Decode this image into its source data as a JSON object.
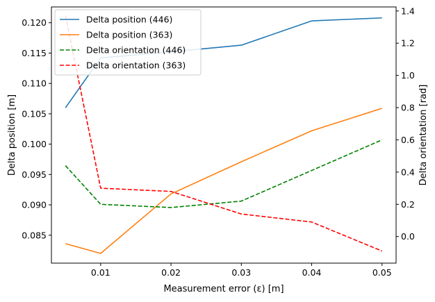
{
  "chart_data": {
    "type": "line",
    "title": "",
    "xlabel": "Measurement error (ε) [m]",
    "ylabel": "Delta position [m]",
    "ylabel_right": "Delta orientation [rad]",
    "x": [
      0.005,
      0.01,
      0.02,
      0.03,
      0.04,
      0.05
    ],
    "xlim": [
      0.003,
      0.052
    ],
    "ylim": [
      0.0804,
      0.1226
    ],
    "ylim_right": [
      -0.165,
      1.425
    ],
    "x_ticks": [
      "0.01",
      "0.02",
      "0.03",
      "0.04",
      "0.05"
    ],
    "y_ticks": [
      "0.085",
      "0.090",
      "0.095",
      "0.100",
      "0.105",
      "0.110",
      "0.115",
      "0.120"
    ],
    "y_ticks_right": [
      "0.0",
      "0.2",
      "0.4",
      "0.6",
      "0.8",
      "1.0",
      "1.2",
      "1.4"
    ],
    "legend_position": "upper-left",
    "grid": false,
    "series": [
      {
        "name": "Delta position (446)",
        "axis": "left",
        "color": "#1f77b4",
        "dash": "solid",
        "values": [
          0.106,
          0.1142,
          0.1152,
          0.1163,
          0.1203,
          0.1208
        ]
      },
      {
        "name": "Delta position (363)",
        "axis": "left",
        "color": "#ff7f0e",
        "dash": "solid",
        "values": [
          0.0836,
          0.082,
          0.0918,
          0.0971,
          0.1022,
          0.1059
        ]
      },
      {
        "name": "Delta orientation (446)",
        "axis": "right",
        "color": "#008000",
        "dash": "dashed",
        "values": [
          0.44,
          0.2,
          0.18,
          0.22,
          0.41,
          0.6
        ]
      },
      {
        "name": "Delta orientation (363)",
        "axis": "right",
        "color": "#ff0000",
        "dash": "dashed",
        "values": [
          1.37,
          0.3,
          0.28,
          0.14,
          0.09,
          -0.09
        ]
      }
    ]
  }
}
